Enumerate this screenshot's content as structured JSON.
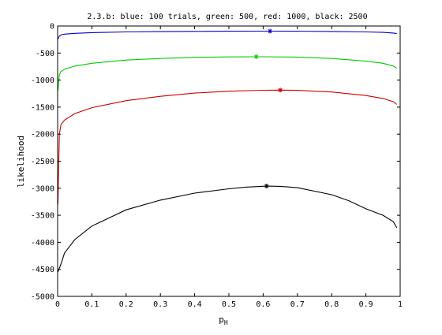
{
  "chart_data": {
    "type": "line",
    "title": "2.3.b: blue: 100 trials, green: 500, red: 1000, black: 2500",
    "xlabel": "p",
    "xlabel_subscript": "H",
    "ylabel": "likelihood",
    "xlim": [
      0,
      1
    ],
    "ylim": [
      -5000,
      0
    ],
    "xticks": [
      0,
      0.1,
      0.2,
      0.3,
      0.4,
      0.5,
      0.6,
      0.7,
      0.8,
      0.9,
      1
    ],
    "xtick_labels": [
      "0",
      "0.1",
      "0.2",
      "0.3",
      "0.4",
      "0.5",
      "0.6",
      "0.7",
      "0.8",
      "0.9",
      "1"
    ],
    "yticks": [
      0,
      -500,
      -1000,
      -1500,
      -2000,
      -2500,
      -3000,
      -3500,
      -4000,
      -4500,
      -5000
    ],
    "ytick_labels": [
      "0",
      "-500",
      "-1000",
      "-1500",
      "-2000",
      "-2500",
      "-3000",
      "-3500",
      "-4000",
      "-4500",
      "-5000"
    ],
    "grid": false,
    "legend": "none",
    "series": [
      {
        "color": "#0000cc",
        "x": [
          0.001,
          0.005,
          0.01,
          0.02,
          0.05,
          0.1,
          0.2,
          0.3,
          0.4,
          0.5,
          0.6,
          0.62,
          0.7,
          0.8,
          0.9,
          0.95,
          0.98,
          0.99
        ],
        "y": [
          -240,
          -185,
          -165,
          -150,
          -135,
          -122,
          -110,
          -103,
          -99,
          -96,
          -95,
          -95,
          -96,
          -100,
          -110,
          -118,
          -130,
          -140
        ],
        "max": {
          "x": 0.62,
          "y": -95
        }
      },
      {
        "color": "#00cc00",
        "x": [
          0.001,
          0.005,
          0.01,
          0.02,
          0.05,
          0.1,
          0.2,
          0.3,
          0.4,
          0.5,
          0.58,
          0.6,
          0.7,
          0.8,
          0.9,
          0.95,
          0.98,
          0.99
        ],
        "y": [
          -1200,
          -900,
          -840,
          -800,
          -740,
          -690,
          -630,
          -600,
          -580,
          -572,
          -568,
          -568,
          -575,
          -600,
          -650,
          -690,
          -740,
          -780
        ],
        "max": {
          "x": 0.58,
          "y": -568
        }
      },
      {
        "color": "#cc0000",
        "x": [
          0.001,
          0.003,
          0.005,
          0.01,
          0.02,
          0.05,
          0.1,
          0.2,
          0.3,
          0.4,
          0.5,
          0.6,
          0.65,
          0.7,
          0.8,
          0.9,
          0.95,
          0.98,
          0.99
        ],
        "y": [
          -3300,
          -2600,
          -2000,
          -1820,
          -1740,
          -1620,
          -1510,
          -1380,
          -1300,
          -1240,
          -1205,
          -1188,
          -1185,
          -1190,
          -1220,
          -1285,
          -1340,
          -1400,
          -1450
        ],
        "max": {
          "x": 0.65,
          "y": -1185
        }
      },
      {
        "color": "#000000",
        "x": [
          0.001,
          0.01,
          0.02,
          0.05,
          0.1,
          0.15,
          0.2,
          0.3,
          0.4,
          0.5,
          0.55,
          0.61,
          0.65,
          0.7,
          0.8,
          0.85,
          0.9,
          0.95,
          0.98,
          0.99
        ],
        "y": [
          -4550,
          -4400,
          -4200,
          -3950,
          -3700,
          -3550,
          -3400,
          -3220,
          -3090,
          -3010,
          -2980,
          -2960,
          -2965,
          -2990,
          -3120,
          -3230,
          -3380,
          -3500,
          -3620,
          -3730
        ],
        "max": {
          "x": 0.61,
          "y": -2960
        }
      }
    ]
  }
}
